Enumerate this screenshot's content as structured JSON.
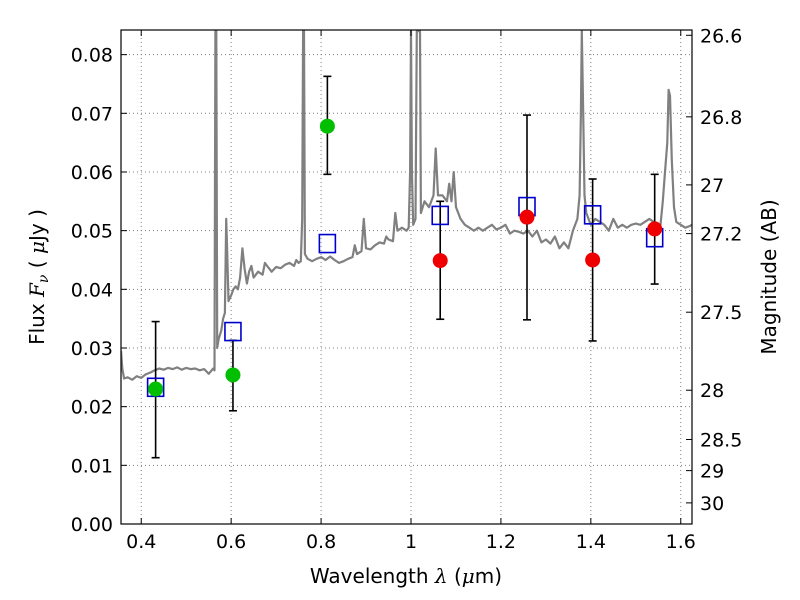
{
  "chart_data": {
    "type": "scatter",
    "title": "",
    "xlabel": "Wavelength  λ (μm)",
    "ylabel_left": "Flux  F_ν  ( μJy )",
    "ylabel_right": "Magnitude (AB)",
    "xlim": [
      0.355,
      1.625
    ],
    "ylim": [
      0.0,
      0.0842
    ],
    "grid": true,
    "legend": "none",
    "x_ticks": [
      {
        "value": 0.4,
        "label": "0.4"
      },
      {
        "value": 0.6,
        "label": "0.6"
      },
      {
        "value": 0.8,
        "label": "0.8"
      },
      {
        "value": 1.0,
        "label": "1"
      },
      {
        "value": 1.2,
        "label": "1.2"
      },
      {
        "value": 1.4,
        "label": "1.4"
      },
      {
        "value": 1.6,
        "label": "1.6"
      }
    ],
    "y_ticks": [
      {
        "value": 0.0,
        "label": "0.00"
      },
      {
        "value": 0.01,
        "label": "0.01"
      },
      {
        "value": 0.02,
        "label": "0.02"
      },
      {
        "value": 0.03,
        "label": "0.03"
      },
      {
        "value": 0.04,
        "label": "0.04"
      },
      {
        "value": 0.05,
        "label": "0.05"
      },
      {
        "value": 0.06,
        "label": "0.06"
      },
      {
        "value": 0.07,
        "label": "0.07"
      },
      {
        "value": 0.08,
        "label": "0.08"
      }
    ],
    "right_ticks": [
      {
        "flux": 0.0833,
        "label": "26.6"
      },
      {
        "flux": 0.0694,
        "label": "26.8"
      },
      {
        "flux": 0.0578,
        "label": "27"
      },
      {
        "flux": 0.0495,
        "label": "27.2"
      },
      {
        "flux": 0.0361,
        "label": "27.5"
      },
      {
        "flux": 0.0228,
        "label": "28"
      },
      {
        "flux": 0.0144,
        "label": "28.5"
      },
      {
        "flux": 0.0091,
        "label": "29"
      },
      {
        "flux": 0.0036,
        "label": "30"
      }
    ],
    "colors": {
      "spectrum": "#808080",
      "model_box": "#0000cc",
      "green": "#00bf00",
      "red": "#ee0000",
      "errorbar": "#000000",
      "grid": "#7f7f7f"
    },
    "spectrum": [
      [
        0.355,
        0.0295
      ],
      [
        0.358,
        0.0265
      ],
      [
        0.362,
        0.0248
      ],
      [
        0.37,
        0.025
      ],
      [
        0.38,
        0.0246
      ],
      [
        0.39,
        0.0252
      ],
      [
        0.4,
        0.0249
      ],
      [
        0.41,
        0.0255
      ],
      [
        0.42,
        0.0258
      ],
      [
        0.43,
        0.0262
      ],
      [
        0.44,
        0.0265
      ],
      [
        0.45,
        0.0263
      ],
      [
        0.46,
        0.0266
      ],
      [
        0.47,
        0.0264
      ],
      [
        0.48,
        0.0267
      ],
      [
        0.49,
        0.0263
      ],
      [
        0.5,
        0.0266
      ],
      [
        0.51,
        0.0264
      ],
      [
        0.52,
        0.0265
      ],
      [
        0.53,
        0.0262
      ],
      [
        0.54,
        0.0264
      ],
      [
        0.55,
        0.0256
      ],
      [
        0.56,
        0.0265
      ],
      [
        0.563,
        0.0262
      ],
      [
        0.565,
        0.084
      ],
      [
        0.567,
        0.084
      ],
      [
        0.569,
        0.03
      ],
      [
        0.572,
        0.0315
      ],
      [
        0.578,
        0.033
      ],
      [
        0.582,
        0.035
      ],
      [
        0.586,
        0.036
      ],
      [
        0.589,
        0.052
      ],
      [
        0.591,
        0.047
      ],
      [
        0.594,
        0.038
      ],
      [
        0.6,
        0.039
      ],
      [
        0.605,
        0.04
      ],
      [
        0.61,
        0.0405
      ],
      [
        0.615,
        0.04
      ],
      [
        0.62,
        0.042
      ],
      [
        0.625,
        0.047
      ],
      [
        0.63,
        0.0435
      ],
      [
        0.635,
        0.041
      ],
      [
        0.64,
        0.043
      ],
      [
        0.645,
        0.044
      ],
      [
        0.65,
        0.042
      ],
      [
        0.66,
        0.043
      ],
      [
        0.67,
        0.0425
      ],
      [
        0.675,
        0.0445
      ],
      [
        0.68,
        0.044
      ],
      [
        0.685,
        0.0435
      ],
      [
        0.69,
        0.043
      ],
      [
        0.7,
        0.0438
      ],
      [
        0.71,
        0.0436
      ],
      [
        0.72,
        0.0442
      ],
      [
        0.73,
        0.0445
      ],
      [
        0.74,
        0.044
      ],
      [
        0.745,
        0.045
      ],
      [
        0.75,
        0.0445
      ],
      [
        0.755,
        0.0448
      ],
      [
        0.758,
        0.052
      ],
      [
        0.76,
        0.084
      ],
      [
        0.762,
        0.084
      ],
      [
        0.764,
        0.046
      ],
      [
        0.77,
        0.0452
      ],
      [
        0.78,
        0.0448
      ],
      [
        0.79,
        0.0452
      ],
      [
        0.8,
        0.0455
      ],
      [
        0.81,
        0.045
      ],
      [
        0.82,
        0.0456
      ],
      [
        0.83,
        0.045
      ],
      [
        0.84,
        0.0445
      ],
      [
        0.85,
        0.0448
      ],
      [
        0.86,
        0.0452
      ],
      [
        0.87,
        0.0455
      ],
      [
        0.875,
        0.0475
      ],
      [
        0.88,
        0.046
      ],
      [
        0.89,
        0.0465
      ],
      [
        0.895,
        0.052
      ],
      [
        0.9,
        0.047
      ],
      [
        0.91,
        0.0468
      ],
      [
        0.92,
        0.0475
      ],
      [
        0.93,
        0.048
      ],
      [
        0.94,
        0.0478
      ],
      [
        0.945,
        0.049
      ],
      [
        0.95,
        0.0485
      ],
      [
        0.96,
        0.0482
      ],
      [
        0.965,
        0.053
      ],
      [
        0.97,
        0.05
      ],
      [
        0.98,
        0.0505
      ],
      [
        0.99,
        0.05
      ],
      [
        0.995,
        0.0505
      ],
      [
        0.998,
        0.06
      ],
      [
        1.0,
        0.084
      ],
      [
        1.002,
        0.06
      ],
      [
        1.005,
        0.051
      ],
      [
        1.01,
        0.052
      ],
      [
        1.013,
        0.084
      ],
      [
        1.015,
        0.084
      ],
      [
        1.02,
        0.084
      ],
      [
        1.022,
        0.053
      ],
      [
        1.03,
        0.055
      ],
      [
        1.04,
        0.054
      ],
      [
        1.05,
        0.056
      ],
      [
        1.055,
        0.064
      ],
      [
        1.06,
        0.056
      ],
      [
        1.07,
        0.056
      ],
      [
        1.08,
        0.055
      ],
      [
        1.085,
        0.058
      ],
      [
        1.09,
        0.055
      ],
      [
        1.095,
        0.06
      ],
      [
        1.1,
        0.054
      ],
      [
        1.11,
        0.052
      ],
      [
        1.12,
        0.051
      ],
      [
        1.13,
        0.0505
      ],
      [
        1.14,
        0.05
      ],
      [
        1.15,
        0.0505
      ],
      [
        1.16,
        0.05
      ],
      [
        1.17,
        0.0505
      ],
      [
        1.18,
        0.051
      ],
      [
        1.19,
        0.0502
      ],
      [
        1.2,
        0.0505
      ],
      [
        1.21,
        0.051
      ],
      [
        1.22,
        0.0495
      ],
      [
        1.23,
        0.05
      ],
      [
        1.24,
        0.0498
      ],
      [
        1.25,
        0.0495
      ],
      [
        1.26,
        0.05
      ],
      [
        1.27,
        0.049
      ],
      [
        1.28,
        0.05
      ],
      [
        1.29,
        0.048
      ],
      [
        1.3,
        0.0485
      ],
      [
        1.31,
        0.0478
      ],
      [
        1.32,
        0.049
      ],
      [
        1.33,
        0.047
      ],
      [
        1.34,
        0.048
      ],
      [
        1.35,
        0.047
      ],
      [
        1.36,
        0.05
      ],
      [
        1.37,
        0.052
      ],
      [
        1.375,
        0.056
      ],
      [
        1.378,
        0.07
      ],
      [
        1.38,
        0.084
      ],
      [
        1.383,
        0.07
      ],
      [
        1.386,
        0.056
      ],
      [
        1.39,
        0.053
      ],
      [
        1.4,
        0.051
      ],
      [
        1.41,
        0.052
      ],
      [
        1.42,
        0.0515
      ],
      [
        1.43,
        0.051
      ],
      [
        1.44,
        0.05
      ],
      [
        1.45,
        0.052
      ],
      [
        1.46,
        0.0505
      ],
      [
        1.47,
        0.051
      ],
      [
        1.48,
        0.0505
      ],
      [
        1.49,
        0.051
      ],
      [
        1.5,
        0.0512
      ],
      [
        1.51,
        0.051
      ],
      [
        1.52,
        0.0515
      ],
      [
        1.53,
        0.052
      ],
      [
        1.54,
        0.0515
      ],
      [
        1.55,
        0.0505
      ],
      [
        1.555,
        0.051
      ],
      [
        1.56,
        0.055
      ],
      [
        1.565,
        0.06
      ],
      [
        1.57,
        0.065
      ],
      [
        1.573,
        0.074
      ],
      [
        1.576,
        0.073
      ],
      [
        1.58,
        0.062
      ],
      [
        1.585,
        0.054
      ],
      [
        1.59,
        0.0515
      ],
      [
        1.6,
        0.051
      ],
      [
        1.61,
        0.0505
      ],
      [
        1.62,
        0.0508
      ],
      [
        1.625,
        0.051
      ]
    ],
    "model_photometry": [
      {
        "x": 0.432,
        "y": 0.0233
      },
      {
        "x": 0.604,
        "y": 0.0328
      },
      {
        "x": 0.814,
        "y": 0.0478
      },
      {
        "x": 1.065,
        "y": 0.0526
      },
      {
        "x": 1.258,
        "y": 0.0541
      },
      {
        "x": 1.404,
        "y": 0.0527
      },
      {
        "x": 1.542,
        "y": 0.0488
      }
    ],
    "observed_green": [
      {
        "x": 0.432,
        "y": 0.023,
        "err_low": 0.0113,
        "err_high": 0.0345
      },
      {
        "x": 0.604,
        "y": 0.0254,
        "err_low": 0.0193,
        "err_high": 0.0313
      },
      {
        "x": 0.814,
        "y": 0.0678,
        "err_low": 0.0596,
        "err_high": 0.0763
      }
    ],
    "observed_red": [
      {
        "x": 1.065,
        "y": 0.0449,
        "err_low": 0.0349,
        "err_high": 0.055
      },
      {
        "x": 1.258,
        "y": 0.0523,
        "err_low": 0.0348,
        "err_high": 0.0697
      },
      {
        "x": 1.404,
        "y": 0.045,
        "err_low": 0.0312,
        "err_high": 0.0588
      },
      {
        "x": 1.542,
        "y": 0.0503,
        "err_low": 0.0409,
        "err_high": 0.0596
      }
    ]
  }
}
